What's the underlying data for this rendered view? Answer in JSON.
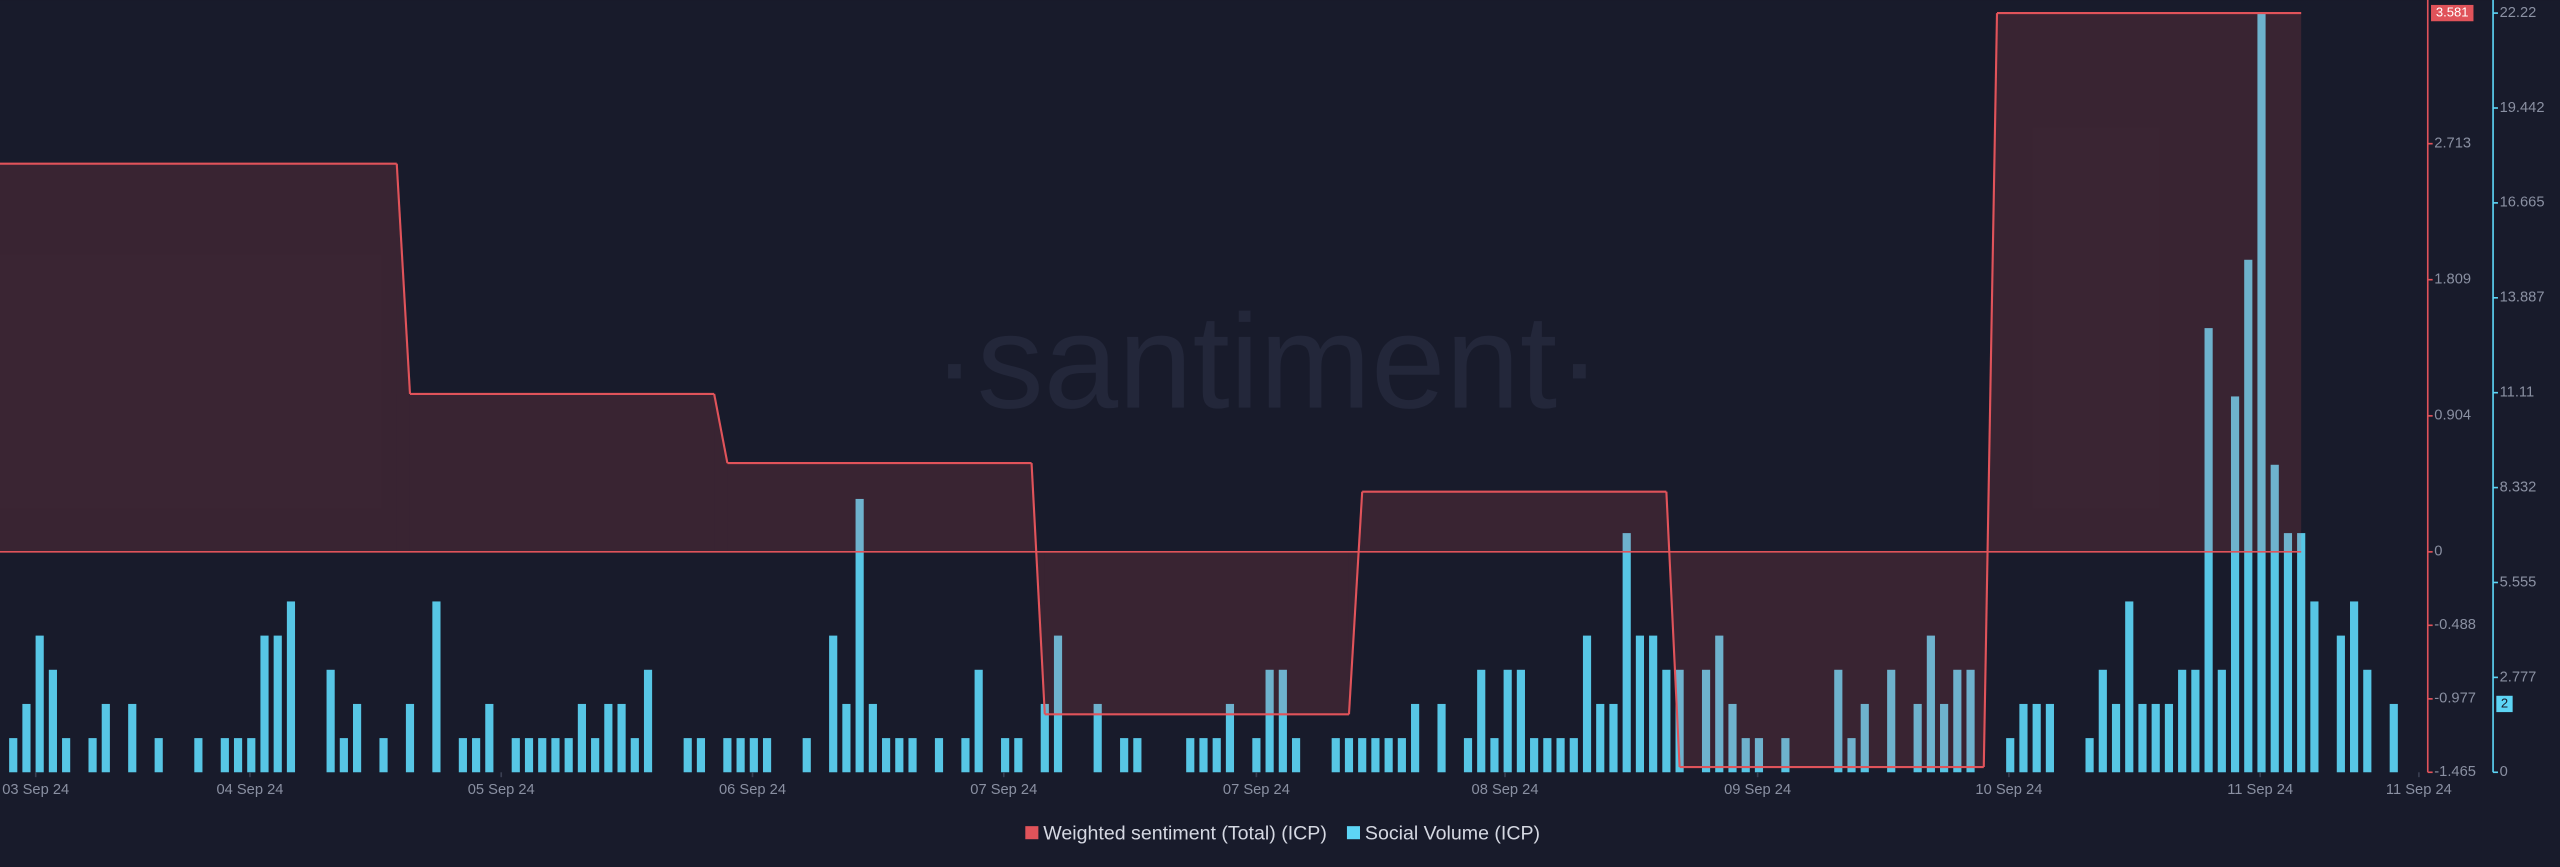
{
  "chart_data": {
    "type": "bar",
    "watermark": "·santiment·",
    "xlim": [
      -1,
      182.2
    ],
    "xticks": [
      {
        "value": 1.7,
        "label": "03 Sep 24"
      },
      {
        "value": 17.9,
        "label": "04 Sep 24"
      },
      {
        "value": 36.9,
        "label": "05 Sep 24"
      },
      {
        "value": 55.9,
        "label": "06 Sep 24"
      },
      {
        "value": 74.9,
        "label": "07 Sep 24"
      },
      {
        "value": 94,
        "label": "07 Sep 24"
      },
      {
        "value": 112.8,
        "label": "08 Sep 24"
      },
      {
        "value": 131.9,
        "label": "09 Sep 24"
      },
      {
        "value": 150.9,
        "label": "10 Sep 24"
      },
      {
        "value": 169.9,
        "label": "11 Sep 24"
      },
      {
        "value": 181.9,
        "label": "11 Sep 24"
      }
    ],
    "ylim": [
      -1.465,
      3.581
    ],
    "yticks": [
      2.713,
      1.809,
      0.904,
      0,
      -0.488,
      -0.977,
      -1.465
    ],
    "y2lim": [
      0,
      22.22
    ],
    "y2ticks": [
      22.22,
      19.442,
      16.665,
      13.887,
      11.11,
      8.332,
      5.555,
      2.777,
      0
    ],
    "series": [
      {
        "name": "Weighted sentiment (Total) (ICP)",
        "type": "step-area",
        "color": "#e0535a",
        "axis": "y",
        "x": [
          -1,
          30,
          54,
          78,
          102,
          126,
          150
        ],
        "values": [
          2.58,
          1.05,
          0.59,
          -1.08,
          0.4,
          -1.43,
          3.581
        ]
      },
      {
        "name": "Social Volume (ICP)",
        "type": "bar",
        "color": "#5dd5f5",
        "axis": "y2",
        "values": [
          1,
          2,
          4,
          3,
          1,
          0,
          1,
          2,
          0,
          2,
          0,
          1,
          0,
          0,
          1,
          0,
          1,
          1,
          1,
          4,
          4,
          5,
          0,
          0,
          3,
          1,
          2,
          0,
          1,
          0,
          2,
          0,
          5,
          0,
          1,
          1,
          2,
          0,
          1,
          1,
          1,
          1,
          1,
          2,
          1,
          2,
          2,
          1,
          3,
          0,
          0,
          1,
          1,
          0,
          1,
          1,
          1,
          1,
          0,
          0,
          1,
          0,
          4,
          2,
          8,
          2,
          1,
          1,
          1,
          0,
          1,
          0,
          1,
          3,
          0,
          1,
          1,
          0,
          2,
          4,
          0,
          0,
          2,
          0,
          1,
          1,
          0,
          0,
          0,
          1,
          1,
          1,
          2,
          0,
          1,
          3,
          3,
          1,
          0,
          0,
          1,
          1,
          1,
          1,
          1,
          1,
          2,
          0,
          2,
          0,
          1,
          3,
          1,
          3,
          3,
          1,
          1,
          1,
          1,
          4,
          2,
          2,
          7,
          4,
          4,
          3,
          3,
          0,
          3,
          4,
          2,
          1,
          1,
          0,
          1,
          0,
          0,
          0,
          3,
          1,
          2,
          0,
          3,
          0,
          2,
          4,
          2,
          3,
          3,
          0,
          0,
          1,
          2,
          2,
          2,
          0,
          0,
          1,
          3,
          2,
          5,
          2,
          2,
          2,
          3,
          3,
          13,
          3,
          11,
          15,
          22.22,
          9,
          7,
          7,
          5,
          0,
          4,
          5,
          3,
          0,
          2
        ]
      }
    ]
  }
}
